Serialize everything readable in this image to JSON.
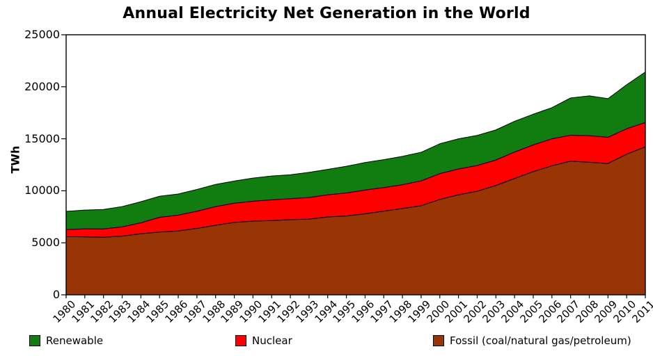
{
  "title": "Annual Electricity Net Generation in the World",
  "chart_data": {
    "type": "area",
    "stacked": true,
    "title": "Annual Electricity Net Generation in the World",
    "xlabel": "",
    "ylabel": "TWh",
    "ylim": [
      0,
      25000
    ],
    "y_ticks": [
      0,
      5000,
      10000,
      15000,
      20000,
      25000
    ],
    "y_tick_labels": [
      "0",
      "5000",
      "10000",
      "15000",
      "20000",
      "25000"
    ],
    "grid": false,
    "legend_position": "bottom",
    "edge_color": "#000000",
    "axis_color": "#000000",
    "x": [
      "1980",
      "1981",
      "1982",
      "1983",
      "1984",
      "1985",
      "1986",
      "1987",
      "1988",
      "1989",
      "1990",
      "1991",
      "1992",
      "1993",
      "1994",
      "1995",
      "1996",
      "1997",
      "1998",
      "1999",
      "2000",
      "2001",
      "2002",
      "2003",
      "2004",
      "2005",
      "2006",
      "2007",
      "2008",
      "2009",
      "2010",
      "2011"
    ],
    "series": [
      {
        "id": "fossil",
        "name": "Fossil (coal/natural gas/petroleum)",
        "color": "#993404",
        "values": [
          5590,
          5575,
          5530,
          5640,
          5870,
          6030,
          6140,
          6385,
          6685,
          6960,
          7085,
          7135,
          7230,
          7275,
          7485,
          7580,
          7790,
          8045,
          8300,
          8565,
          9170,
          9620,
          9955,
          10510,
          11180,
          11845,
          12405,
          12850,
          12740,
          12625,
          13515,
          14230
        ]
      },
      {
        "id": "nuclear",
        "name": "Nuclear",
        "color": "#FF0000",
        "values": [
          685,
          770,
          805,
          895,
          1055,
          1425,
          1520,
          1655,
          1795,
          1845,
          1910,
          1995,
          2010,
          2080,
          2130,
          2210,
          2290,
          2265,
          2290,
          2390,
          2480,
          2480,
          2480,
          2450,
          2550,
          2570,
          2590,
          2495,
          2560,
          2520,
          2450,
          2335
        ]
      },
      {
        "id": "renewable",
        "name": "Renewable",
        "color": "#117D11",
        "values": [
          1750,
          1800,
          1870,
          1950,
          2025,
          2020,
          2030,
          2090,
          2135,
          2135,
          2225,
          2290,
          2300,
          2420,
          2445,
          2565,
          2635,
          2680,
          2720,
          2745,
          2870,
          2900,
          2890,
          2890,
          2950,
          2950,
          3000,
          3580,
          3830,
          3715,
          4230,
          4860
        ]
      }
    ],
    "legend": [
      {
        "label": "Renewable",
        "color": "#117D11"
      },
      {
        "label": "Nuclear",
        "color": "#FF0000"
      },
      {
        "label": "Fossil (coal/natural gas/petroleum)",
        "color": "#993404"
      }
    ]
  }
}
